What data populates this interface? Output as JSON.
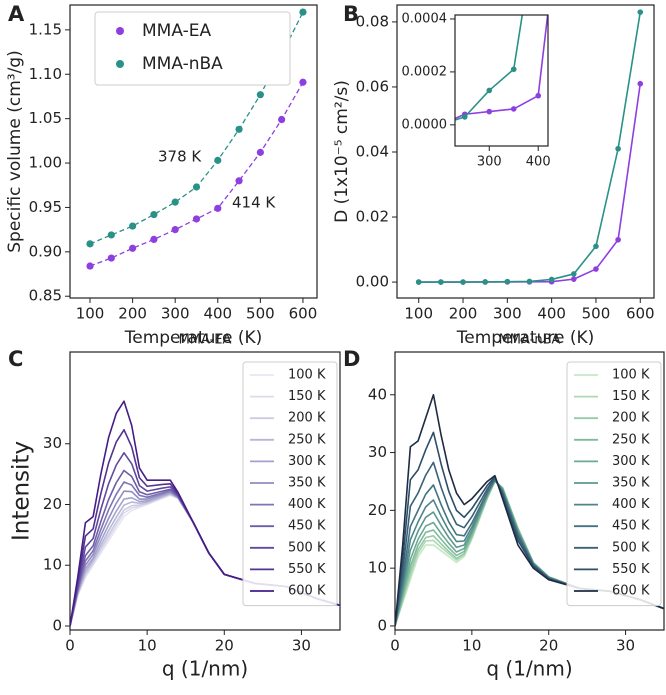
{
  "chart_data": [
    {
      "type": "scatter",
      "panel_label": "A",
      "xlabel": "Temperature (K)",
      "ylabel": "Specific volume (cm³/g)",
      "x": [
        100,
        150,
        200,
        250,
        300,
        350,
        400,
        450,
        500,
        550,
        600
      ],
      "series": [
        {
          "name": "MMA-EA",
          "color": "#8e3fe0",
          "values": [
            0.884,
            0.893,
            0.904,
            0.914,
            0.925,
            0.937,
            0.949,
            0.98,
            1.012,
            1.049,
            1.091
          ]
        },
        {
          "name": "MMA-nBA",
          "color": "#2a9188",
          "values": [
            0.909,
            0.919,
            0.929,
            0.942,
            0.956,
            0.973,
            1.003,
            1.038,
            1.077,
            1.122,
            1.17
          ]
        }
      ],
      "annotations": [
        {
          "text": "378 K",
          "color": "#2a9188"
        },
        {
          "text": "414 K",
          "color": "#8e3fe0"
        }
      ],
      "legend": "upper left",
      "xlim": [
        53,
        633
      ],
      "xticks": [
        100,
        200,
        300,
        400,
        500,
        600
      ],
      "ylim": [
        0.848,
        1.178
      ],
      "yticks": [
        {
          "value": 0.85,
          "label": "0.85"
        },
        {
          "value": 0.9,
          "label": "0.90"
        },
        {
          "value": 0.95,
          "label": "0.95"
        },
        {
          "value": 1.0,
          "label": "1.00"
        },
        {
          "value": 1.05,
          "label": "1.05"
        },
        {
          "value": 1.1,
          "label": "1.10"
        },
        {
          "value": 1.15,
          "label": "1.15"
        }
      ]
    },
    {
      "type": "line",
      "markers": true,
      "panel_label": "B",
      "xlabel": "Temperature (K)",
      "ylabel": "D (1x10⁻⁵ cm²/s)",
      "x": [
        100,
        150,
        200,
        250,
        300,
        350,
        400,
        450,
        500,
        550,
        600
      ],
      "series": [
        {
          "name": "MMA-EA",
          "color": "#8e3fe0",
          "values": [
            0,
            0,
            0,
            4e-05,
            5e-05,
            6e-05,
            0.00011,
            0.0009,
            0.004,
            0.013,
            0.061
          ]
        },
        {
          "name": "MMA-nBA",
          "color": "#2a9188",
          "values": [
            0,
            0,
            0,
            3e-05,
            0.00013,
            0.00021,
            0.0008,
            0.0025,
            0.011,
            0.041,
            0.083
          ]
        }
      ],
      "xlim": [
        51,
        631
      ],
      "xticks": [
        100,
        200,
        300,
        400,
        500,
        600
      ],
      "ylim": [
        -0.0049,
        0.0852
      ],
      "yticks": [
        {
          "value": 0,
          "label": "0.00"
        },
        {
          "value": 0.02,
          "label": "0.02"
        },
        {
          "value": 0.04,
          "label": "0.04"
        },
        {
          "value": 0.06,
          "label": "0.06"
        },
        {
          "value": 0.08,
          "label": "0.08"
        }
      ],
      "inset": {
        "xlim": [
          230,
          420
        ],
        "xticks": [
          300,
          400
        ],
        "ylim": [
          -8e-05,
          0.000415
        ],
        "yticks": [
          {
            "value": 0,
            "label": "0.0000"
          },
          {
            "value": 0.0002,
            "label": "0.0002"
          },
          {
            "value": 0.0004,
            "label": "0.0004"
          }
        ]
      }
    },
    {
      "type": "line",
      "markers": false,
      "panel_label": "C",
      "title": "MMA-EA",
      "xlabel": "q (1/nm)",
      "ylabel": "Intensity",
      "legend": "upper right",
      "x": [
        0,
        1,
        2,
        3,
        4,
        5,
        6,
        7,
        8,
        9,
        10,
        12,
        13,
        14,
        16,
        18,
        20,
        24,
        28,
        32,
        35
      ],
      "series": [
        {
          "name": "100 K",
          "color": "#e8e6f1",
          "values": [
            0,
            5,
            8,
            10,
            12,
            14,
            16,
            18,
            19,
            19.5,
            20,
            21,
            21.5,
            21,
            17,
            12,
            8.5,
            7,
            6.5,
            4.5,
            3.4
          ]
        },
        {
          "name": "150 K",
          "color": "#dcdaeb",
          "values": [
            0,
            5.1,
            8.3,
            10.2,
            12.4,
            14.5,
            16.6,
            18.6,
            19.4,
            19.7,
            20.1,
            21.1,
            21.6,
            21,
            17,
            12,
            8.5,
            7,
            6.5,
            4.5,
            3.4
          ]
        },
        {
          "name": "200 K",
          "color": "#cccbe3",
          "values": [
            0,
            5.2,
            8.5,
            10.5,
            12.8,
            15,
            17.1,
            19.1,
            19.8,
            19.9,
            20.2,
            21.2,
            21.7,
            21.1,
            17,
            12,
            8.5,
            7,
            6.5,
            4.5,
            3.4
          ]
        },
        {
          "name": "250 K",
          "color": "#b8b6d8",
          "values": [
            0,
            5.3,
            8.9,
            10.8,
            13.3,
            15.7,
            17.9,
            19.9,
            20.4,
            20.2,
            20.4,
            21.3,
            21.8,
            21.1,
            17,
            12,
            8.5,
            7,
            6.5,
            4.5,
            3.4
          ]
        },
        {
          "name": "300 K",
          "color": "#a4a2cc",
          "values": [
            0,
            5.5,
            9.4,
            11.2,
            14,
            16.6,
            18.9,
            20.9,
            21.1,
            20.5,
            20.6,
            21.5,
            21.9,
            21.2,
            17,
            12,
            8.5,
            7,
            6.5,
            4.5,
            3.4
          ]
        },
        {
          "name": "350 K",
          "color": "#918cc0",
          "values": [
            0,
            5.7,
            10,
            11.8,
            14.9,
            17.7,
            20.2,
            22.2,
            22.1,
            20.9,
            20.9,
            21.7,
            22.1,
            21.2,
            17,
            12,
            8.5,
            7,
            6.5,
            4.5,
            3.4
          ]
        },
        {
          "name": "400 K",
          "color": "#7f74b4",
          "values": [
            0,
            5.9,
            10.7,
            12.4,
            15.9,
            19.1,
            21.7,
            23.7,
            23.2,
            21.5,
            21.2,
            21.9,
            22.3,
            21.3,
            17,
            12,
            8.5,
            7,
            6.5,
            4.5,
            3.4
          ]
        },
        {
          "name": "450 K",
          "color": "#6e5da8",
          "values": [
            0,
            6.2,
            11.6,
            13.2,
            17.2,
            20.8,
            23.6,
            25.6,
            24.6,
            22.1,
            21.6,
            22.2,
            22.5,
            21.4,
            17,
            12,
            8.5,
            7,
            6.5,
            4.5,
            3.4
          ]
        },
        {
          "name": "500 K",
          "color": "#60489d",
          "values": [
            0,
            6.7,
            13,
            14.4,
            19.2,
            23.4,
            26.5,
            28.5,
            26.7,
            23.1,
            22.2,
            22.7,
            22.9,
            21.6,
            17,
            12,
            8.5,
            7,
            6.5,
            4.5,
            3.4
          ]
        },
        {
          "name": "550 K",
          "color": "#533292",
          "values": [
            0,
            7.3,
            14.8,
            16,
            21.8,
            26.8,
            30.3,
            32.3,
            29.5,
            24.4,
            23,
            23.3,
            23.4,
            21.8,
            17,
            12,
            8.5,
            7,
            6.5,
            4.5,
            3.4
          ]
        },
        {
          "name": "600 K",
          "color": "#461d88",
          "values": [
            0,
            8,
            17,
            18,
            25,
            31,
            35,
            37,
            33,
            26,
            24,
            24,
            24,
            22,
            17,
            12,
            8.5,
            7,
            6.5,
            4.5,
            3.4
          ]
        }
      ],
      "xlim": [
        0,
        35
      ],
      "xticks": [
        0,
        10,
        20,
        30
      ],
      "ylim": [
        -0.66,
        45.1
      ],
      "yticks": [
        0,
        10,
        20,
        30
      ]
    },
    {
      "type": "line",
      "markers": false,
      "panel_label": "D",
      "title": "MMA-nBA",
      "xlabel": "q (1/nm)",
      "legend": "upper right",
      "x": [
        0,
        1,
        2,
        3,
        4,
        5,
        6,
        7,
        8,
        9,
        10,
        12,
        13,
        14,
        16,
        18,
        20,
        24,
        28,
        32,
        35
      ],
      "series": [
        {
          "name": "100 K",
          "color": "#c6e7c4",
          "values": [
            0,
            4,
            8,
            12,
            14,
            14,
            13,
            12,
            11,
            12,
            15,
            22,
            25,
            24,
            17,
            11,
            8.5,
            6.5,
            6,
            4.5,
            3
          ]
        },
        {
          "name": "150 K",
          "color": "#aed9b5",
          "values": [
            0,
            4.3,
            8.7,
            12.6,
            14.7,
            14.8,
            13.6,
            12.5,
            11.4,
            12.3,
            15.2,
            22.1,
            25,
            23.9,
            16.9,
            11,
            8.5,
            6.5,
            6,
            4.5,
            3
          ]
        },
        {
          "name": "200 K",
          "color": "#96caa8",
          "values": [
            0,
            4.6,
            9.4,
            13.2,
            15.3,
            15.6,
            14.2,
            12.9,
            11.7,
            12.5,
            15.4,
            22.2,
            25.1,
            23.9,
            16.8,
            10.9,
            8.5,
            6.5,
            6,
            4.5,
            3
          ]
        },
        {
          "name": "250 K",
          "color": "#80ba9d",
          "values": [
            0,
            5,
            10.3,
            14,
            16.2,
            16.6,
            15,
            13.5,
            12.2,
            12.9,
            15.7,
            22.3,
            25.1,
            23.8,
            16.7,
            10.9,
            8.5,
            6.5,
            6,
            4.5,
            3
          ]
        },
        {
          "name": "300 K",
          "color": "#6ca995",
          "values": [
            0,
            5.5,
            11.5,
            15,
            17.3,
            17.9,
            16,
            14.3,
            12.8,
            13.4,
            16.1,
            22.5,
            25.2,
            23.7,
            16.6,
            10.9,
            8.4,
            6.5,
            6,
            4.5,
            3
          ]
        },
        {
          "name": "350 K",
          "color": "#5c978e",
          "values": [
            0,
            6.2,
            13.1,
            16.4,
            18.8,
            19.7,
            17.4,
            15.3,
            13.6,
            14,
            16.5,
            22.7,
            25.2,
            23.6,
            16.3,
            10.8,
            8.4,
            6.5,
            6,
            4.5,
            3
          ]
        },
        {
          "name": "400 K",
          "color": "#4f8589",
          "values": [
            0,
            7,
            14.9,
            18,
            20.6,
            21.8,
            19,
            16.5,
            14.6,
            14.7,
            17.1,
            22.9,
            25.3,
            23.4,
            16.1,
            10.7,
            8.4,
            6.5,
            6,
            4.5,
            3
          ]
        },
        {
          "name": "450 K",
          "color": "#437381",
          "values": [
            0,
            8,
            17.2,
            20,
            22.8,
            24.4,
            21,
            18,
            15.8,
            15.6,
            17.8,
            23.2,
            25.4,
            23.2,
            15.8,
            10.6,
            8.3,
            6.5,
            6,
            4.5,
            3
          ]
        },
        {
          "name": "500 K",
          "color": "#386177",
          "values": [
            0,
            9.5,
            20.7,
            23,
            26.1,
            28.3,
            24,
            20.3,
            17.6,
            17,
            18.9,
            23.7,
            25.6,
            22.9,
            15.4,
            10.5,
            8.2,
            6.5,
            6,
            4.5,
            3
          ]
        },
        {
          "name": "550 K",
          "color": "#2d4d69",
          "values": [
            0,
            11.5,
            25.3,
            27,
            30.5,
            33.5,
            28,
            23.3,
            20,
            18.8,
            20.3,
            24.3,
            25.8,
            22.5,
            14.8,
            10.3,
            8.1,
            6.5,
            6,
            4.5,
            3
          ]
        },
        {
          "name": "600 K",
          "color": "#1e2b42",
          "values": [
            0,
            14,
            31,
            32,
            36,
            40,
            33,
            27,
            23,
            21,
            22,
            25,
            26,
            22,
            14,
            10,
            8,
            6.5,
            6,
            4.5,
            3
          ]
        }
      ],
      "xlim": [
        0,
        35
      ],
      "xticks": [
        0,
        10,
        20,
        30
      ],
      "ylim": [
        -0.7,
        47.4
      ],
      "yticks": [
        0,
        10,
        20,
        30,
        40
      ]
    }
  ]
}
